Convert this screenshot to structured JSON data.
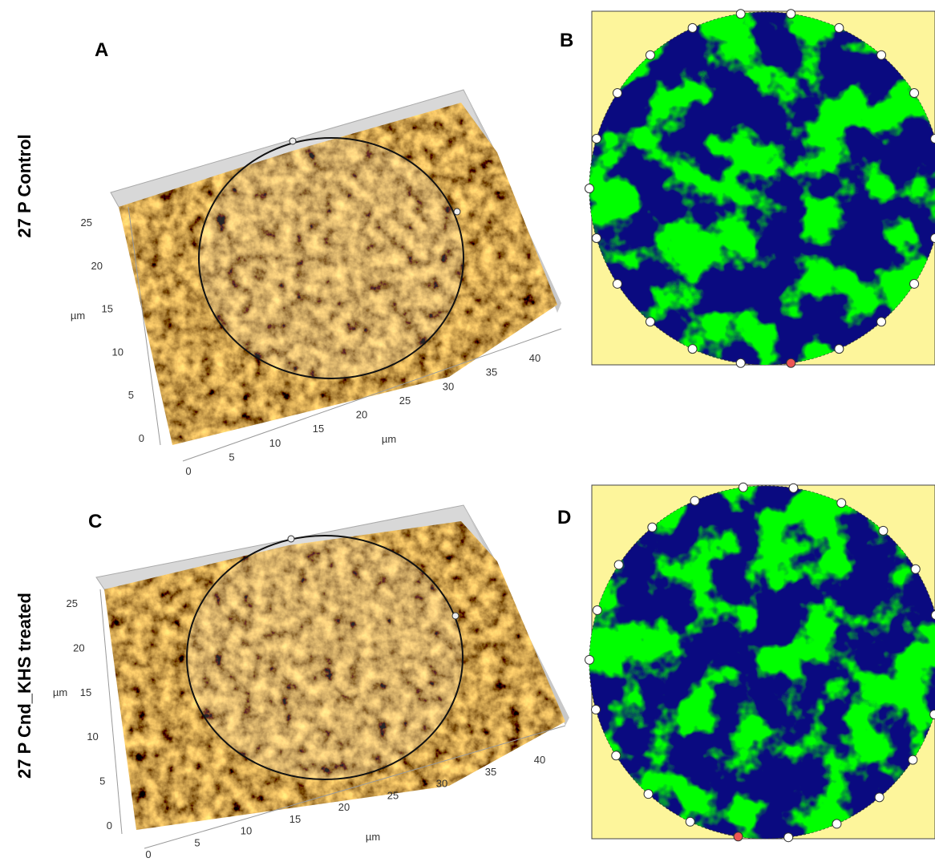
{
  "panels": [
    {
      "label": "A",
      "row_label": "27 P Control",
      "z_axis": {
        "ticks": [
          0,
          5,
          10,
          15,
          20,
          25
        ],
        "unit": "µm"
      },
      "x_axis": {
        "ticks": [
          0,
          5,
          10,
          15,
          20,
          25,
          30,
          35,
          40
        ],
        "unit": "µm"
      }
    },
    {
      "label": "B"
    },
    {
      "label": "C",
      "row_label": "27 P Cnd_KHS treated",
      "z_axis": {
        "ticks": [
          0,
          5,
          10,
          15,
          20,
          25
        ],
        "unit": "µm"
      },
      "x_axis": {
        "ticks": [
          0,
          5,
          10,
          15,
          20,
          25,
          30,
          35,
          40
        ],
        "unit": "µm"
      }
    },
    {
      "label": "D"
    }
  ]
}
